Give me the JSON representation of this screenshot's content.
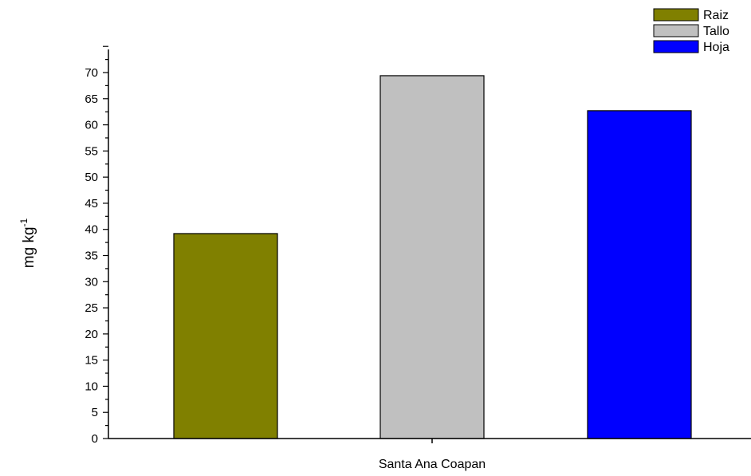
{
  "chart_data": {
    "type": "bar",
    "categories": [
      "Santa Ana Coapan"
    ],
    "series": [
      {
        "name": "Raiz",
        "values": [
          39.2
        ],
        "color": "#808000"
      },
      {
        "name": "Tallo",
        "values": [
          69.4
        ],
        "color": "#C0C0C0"
      },
      {
        "name": "Hoja",
        "values": [
          62.7
        ],
        "color": "#0000FF"
      }
    ],
    "xlabel": "Santa Ana Coapan",
    "ylabel_main": "mg kg",
    "ylabel_sup": "-1",
    "ylim": [
      0,
      75
    ],
    "yticks": [
      0,
      5,
      10,
      15,
      20,
      25,
      30,
      35,
      40,
      45,
      50,
      55,
      60,
      65,
      70
    ],
    "grid": false,
    "legend_position": "top-right"
  }
}
